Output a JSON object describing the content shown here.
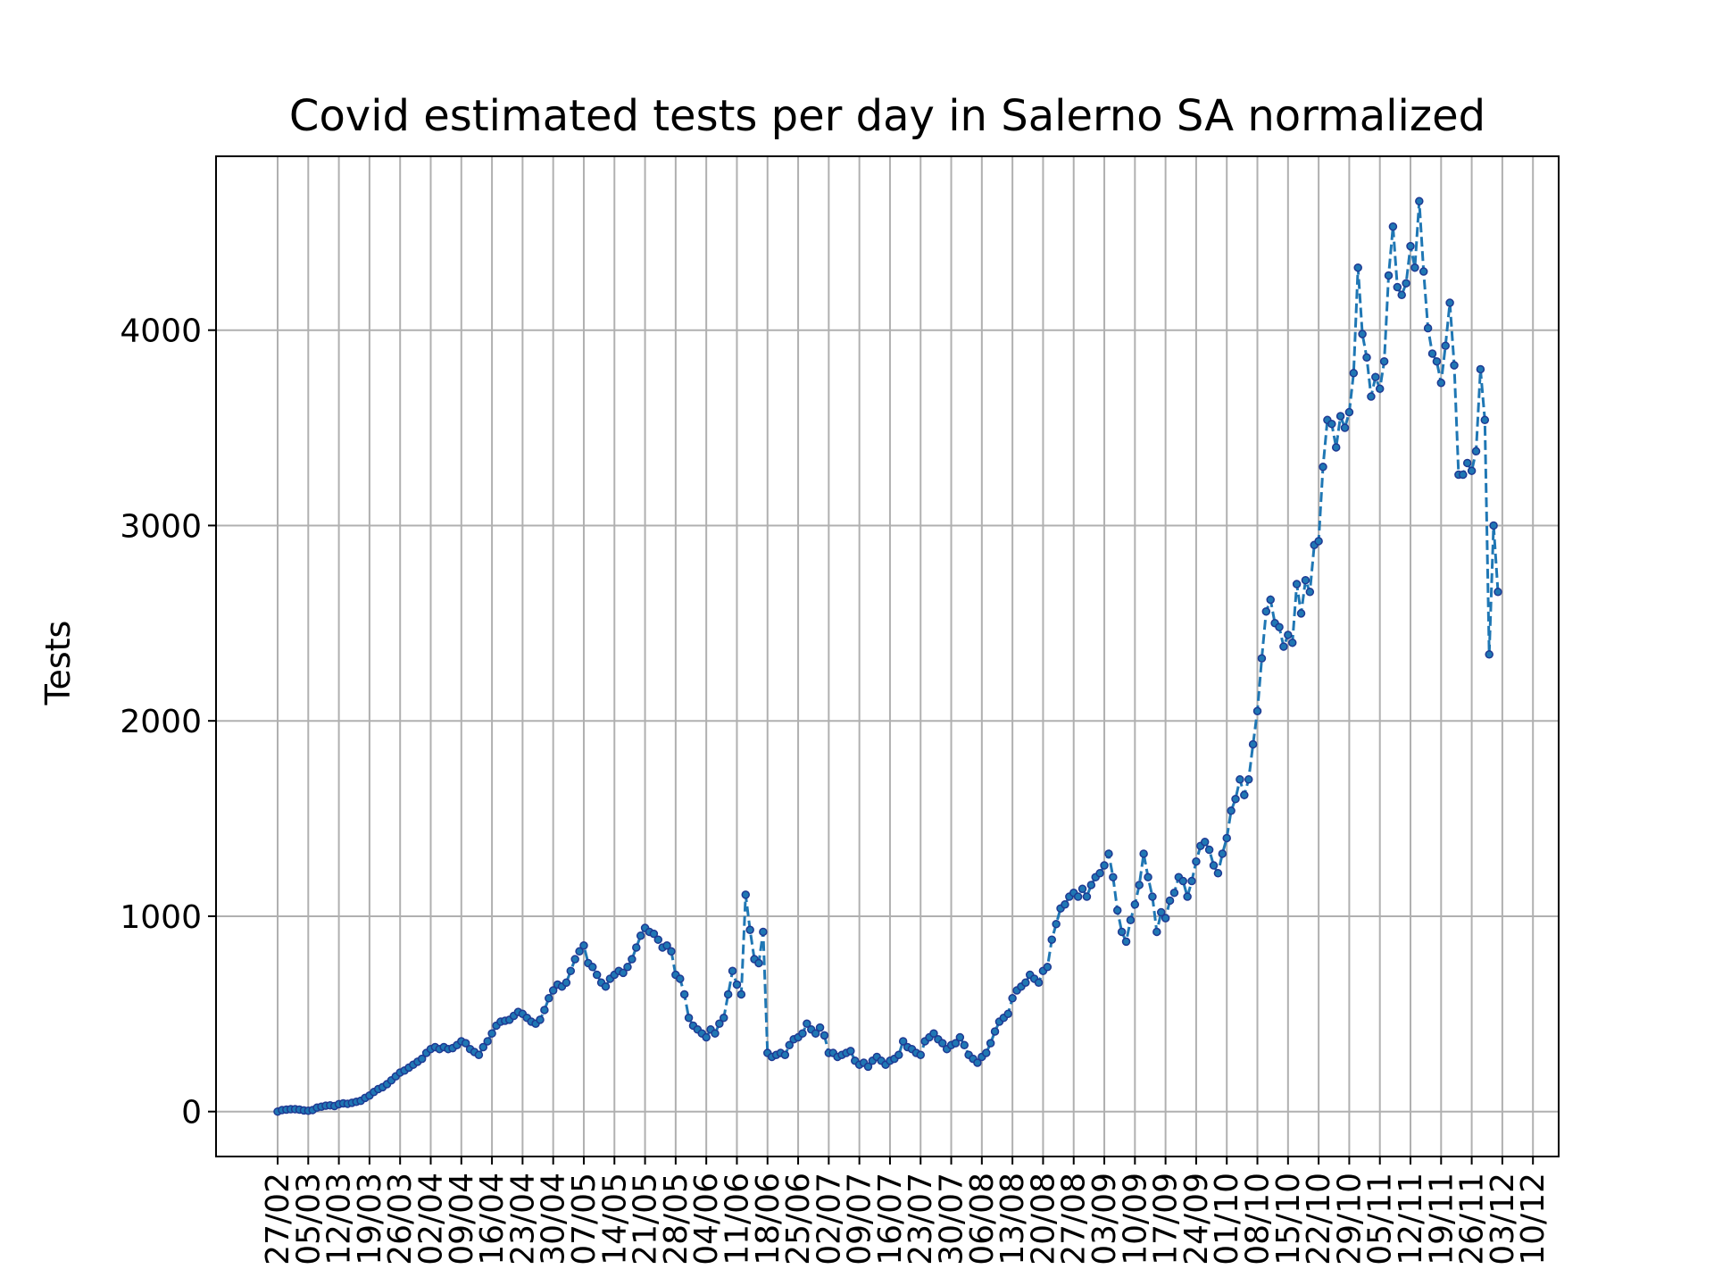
{
  "chart_data": {
    "type": "line",
    "title": "Covid estimated tests per day in Salerno SA normalized",
    "xlabel": "",
    "ylabel": "Tests",
    "ylim": [
      -230,
      4890
    ],
    "yticks": [
      0,
      1000,
      2000,
      3000,
      4000
    ],
    "grid": true,
    "line_style": "dashed",
    "marker": "dot",
    "colors": {
      "line": "#1f77b4",
      "marker_edge": "#1f3a93"
    },
    "x_start": "2020-02-27",
    "xtick_labels": [
      "27/02",
      "05/03",
      "12/03",
      "19/03",
      "26/03",
      "02/04",
      "09/04",
      "16/04",
      "23/04",
      "30/04",
      "07/05",
      "14/05",
      "21/05",
      "28/05",
      "04/06",
      "11/06",
      "18/06",
      "25/06",
      "02/07",
      "09/07",
      "16/07",
      "23/07",
      "30/07",
      "06/08",
      "13/08",
      "20/08",
      "27/08",
      "03/09",
      "10/09",
      "17/09",
      "24/09",
      "01/10",
      "08/10",
      "15/10",
      "22/10",
      "29/10",
      "05/11",
      "12/11",
      "19/11",
      "26/11",
      "03/12",
      "10/12"
    ],
    "series": [
      {
        "values": [
          0,
          8,
          10,
          12,
          12,
          10,
          6,
          4,
          8,
          20,
          25,
          30,
          32,
          28,
          38,
          42,
          40,
          45,
          50,
          55,
          70,
          82,
          100,
          115,
          125,
          140,
          160,
          180,
          200,
          210,
          225,
          240,
          255,
          270,
          300,
          320,
          330,
          320,
          330,
          320,
          325,
          340,
          360,
          350,
          320,
          305,
          290,
          330,
          360,
          400,
          440,
          460,
          465,
          470,
          490,
          510,
          500,
          480,
          460,
          450,
          470,
          520,
          580,
          620,
          650,
          640,
          660,
          720,
          780,
          820,
          850,
          760,
          740,
          700,
          660,
          640,
          680,
          700,
          720,
          710,
          740,
          780,
          840,
          900,
          940,
          920,
          910,
          880,
          840,
          850,
          820,
          700,
          680,
          600,
          480,
          440,
          420,
          400,
          380,
          420,
          400,
          450,
          480,
          600,
          720,
          650,
          600,
          1110,
          930,
          780,
          760,
          920,
          300,
          280,
          290,
          300,
          290,
          340,
          370,
          380,
          400,
          450,
          420,
          400,
          430,
          390,
          300,
          300,
          280,
          290,
          300,
          310,
          260,
          240,
          250,
          230,
          260,
          280,
          260,
          240,
          260,
          270,
          290,
          360,
          330,
          320,
          300,
          290,
          360,
          380,
          400,
          370,
          350,
          320,
          340,
          350,
          380,
          340,
          290,
          270,
          250,
          280,
          300,
          350,
          410,
          460,
          480,
          500,
          580,
          620,
          640,
          660,
          700,
          680,
          660,
          720,
          740,
          880,
          960,
          1040,
          1060,
          1100,
          1120,
          1100,
          1140,
          1100,
          1160,
          1200,
          1220,
          1260,
          1320,
          1200,
          1030,
          920,
          870,
          980,
          1060,
          1160,
          1320,
          1200,
          1100,
          920,
          1020,
          990,
          1080,
          1120,
          1200,
          1180,
          1100,
          1180,
          1280,
          1360,
          1380,
          1340,
          1260,
          1220,
          1320,
          1400,
          1540,
          1600,
          1700,
          1620,
          1700,
          1880,
          2050,
          2320,
          2560,
          2620,
          2500,
          2480,
          2380,
          2440,
          2400,
          2700,
          2550,
          2720,
          2660,
          2900,
          2920,
          3300,
          3540,
          3520,
          3400,
          3560,
          3500,
          3580,
          3780,
          4320,
          3980,
          3860,
          3660,
          3760,
          3700,
          3840,
          4280,
          4530,
          4220,
          4180,
          4240,
          4430,
          4320,
          4660,
          4300,
          4010,
          3880,
          3840,
          3730,
          3920,
          4140,
          3820,
          3260,
          3260,
          3320,
          3280,
          3380,
          3800,
          3540,
          2340,
          3000,
          2660
        ]
      }
    ]
  }
}
